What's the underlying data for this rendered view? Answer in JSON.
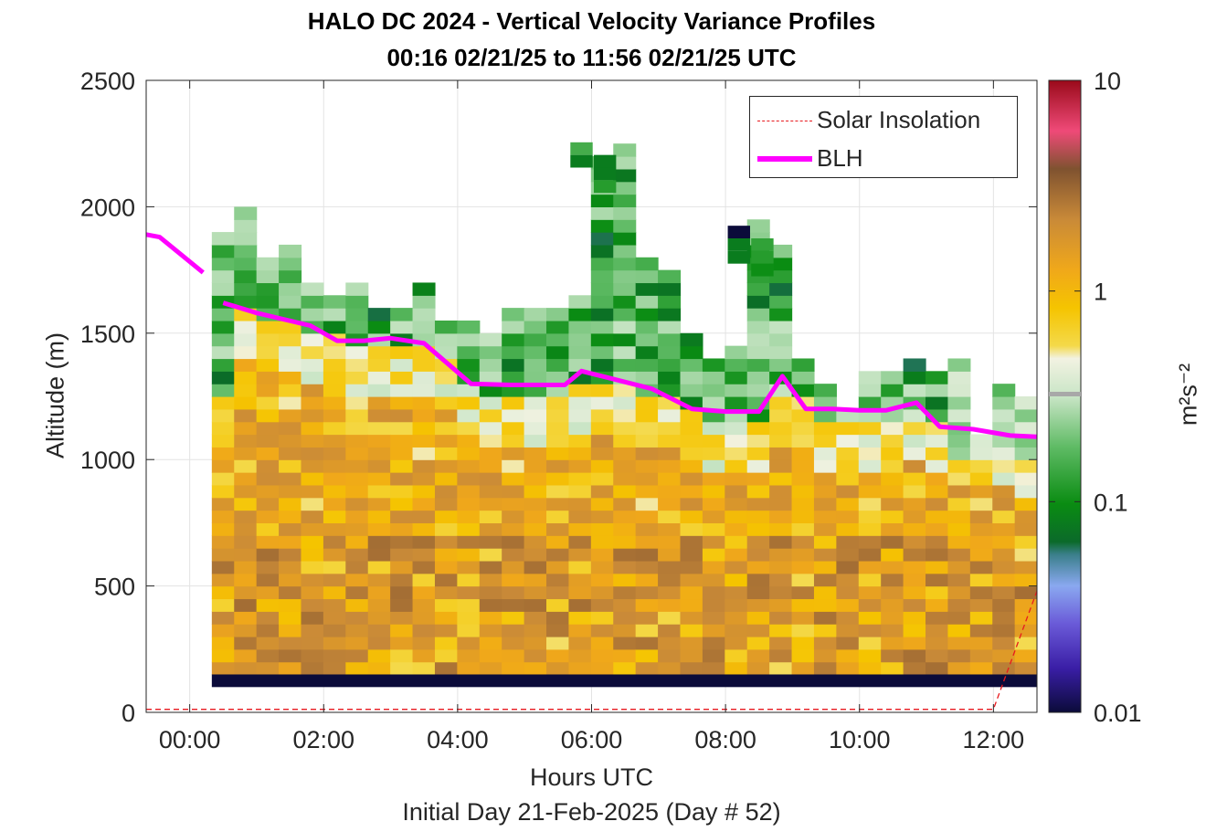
{
  "chart_data": {
    "type": "heatmap",
    "title": "HALO DC 2024 - Vertical Velocity Variance Profiles",
    "subtitle": "00:16 02/21/25 to 11:56 02/21/25  UTC",
    "xlabel": "Hours UTC",
    "xsublabel": "Initial Day 21-Feb-2025 (Day # 52)",
    "ylabel": "Altitude (m)",
    "colorbar_label": "m²s⁻²",
    "x_ticks": [
      "00:00",
      "02:00",
      "04:00",
      "06:00",
      "08:00",
      "10:00",
      "12:00"
    ],
    "x_tick_hours": [
      0,
      2,
      4,
      6,
      8,
      10,
      12
    ],
    "y_ticks": [
      "0",
      "500",
      "1000",
      "1500",
      "2000",
      "2500"
    ],
    "y_tick_values": [
      0,
      500,
      1000,
      1500,
      2000,
      2500
    ],
    "colorbar_ticks": [
      "0.01",
      "0.1",
      "1",
      "10"
    ],
    "colorbar_values": [
      0.01,
      0.1,
      1,
      10
    ],
    "color_scale": "log",
    "xlim": [
      -0.65,
      12.65
    ],
    "ylim": [
      0,
      2500
    ],
    "grid": true,
    "legend_position": "top-right",
    "series": [
      {
        "name": "Solar Insolation",
        "style": "dashed",
        "color": "#e8191e",
        "x": [
          -0.65,
          12.0,
          12.65
        ],
        "y": [
          12,
          12,
          480
        ]
      },
      {
        "name": "BLH",
        "style": "solid",
        "color": "#ff00ff",
        "x": [
          -0.65,
          -0.45,
          0.2,
          null,
          0.5,
          1.0,
          1.8,
          2.2,
          2.6,
          3.0,
          3.5,
          4.2,
          4.8,
          5.6,
          5.85,
          6.3,
          6.9,
          7.5,
          8.0,
          8.5,
          8.85,
          9.2,
          9.6,
          10.0,
          10.4,
          10.85,
          11.2,
          11.7,
          12.25,
          12.65
        ],
        "y": [
          1890,
          1880,
          1740,
          null,
          1620,
          1580,
          1530,
          1470,
          1470,
          1480,
          1460,
          1300,
          1295,
          1295,
          1350,
          1320,
          1280,
          1200,
          1190,
          1190,
          1330,
          1200,
          1200,
          1195,
          1195,
          1225,
          1130,
          1120,
          1095,
          1090
        ]
      }
    ],
    "heatmap": {
      "x_start_hour": 0.33,
      "time_step_hours": 0.333,
      "altitude_start_m": 150,
      "altitude_step_m": 50,
      "bottom_band": {
        "altitude_range_m": [
          100,
          150
        ],
        "value": 0.01
      },
      "column_top_altitudes_m": [
        1875,
        1975,
        1775,
        1825,
        1675,
        1625,
        1675,
        1575,
        1575,
        1675,
        1525,
        1525,
        1475,
        1575,
        1575,
        1575,
        1625,
        2175,
        2225,
        1775,
        1725,
        1475,
        1375,
        1425,
        1925,
        1825,
        1375,
        1275,
        1175,
        1325,
        1325,
        1375,
        1325,
        1375,
        1075,
        1275,
        1225
      ],
      "cells_note": "values per column from bottom (150 m) to column top in 50 m steps; high isolated cells listed separately",
      "isolated_cells": [
        {
          "hour": 5.85,
          "altitude_m": 2230,
          "value": 0.15
        },
        {
          "hour": 5.85,
          "altitude_m": 2180,
          "value": 0.08
        },
        {
          "hour": 6.2,
          "altitude_m": 2180,
          "value": 0.08
        },
        {
          "hour": 6.2,
          "altitude_m": 2130,
          "value": 0.08
        },
        {
          "hour": 6.2,
          "altitude_m": 2080,
          "value": 0.12
        },
        {
          "hour": 8.2,
          "altitude_m": 1900,
          "value": 0.01
        },
        {
          "hour": 8.2,
          "altitude_m": 1850,
          "value": 0.08
        },
        {
          "hour": 8.2,
          "altitude_m": 1800,
          "value": 0.08
        },
        {
          "hour": 8.55,
          "altitude_m": 1850,
          "value": 0.13
        },
        {
          "hour": 8.55,
          "altitude_m": 1800,
          "value": 0.12
        },
        {
          "hour": 8.55,
          "altitude_m": 1750,
          "value": 0.1
        }
      ]
    }
  }
}
